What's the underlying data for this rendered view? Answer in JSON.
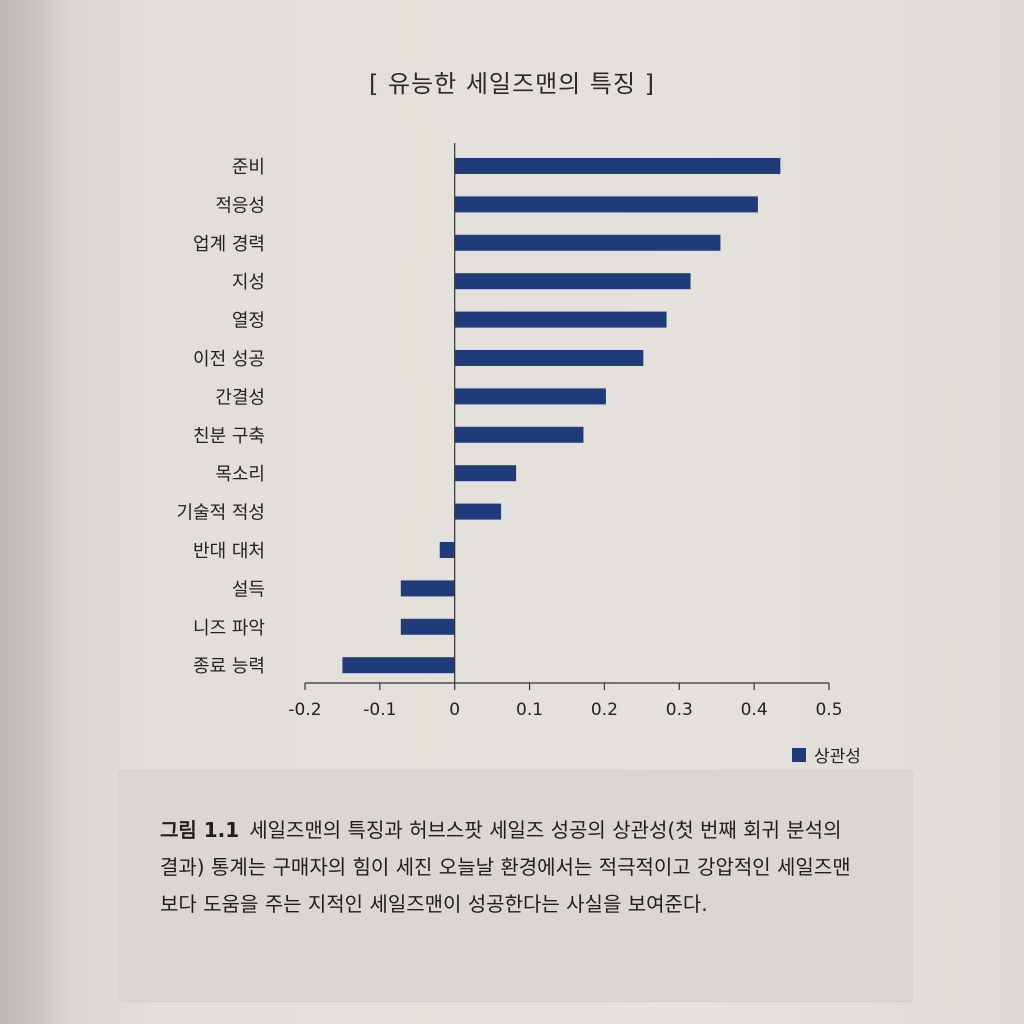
{
  "title": "[ 유능한 세일즈맨의 특징 ]",
  "legend": {
    "label": "상관성",
    "color": "#1f3b7a"
  },
  "caption": {
    "label": "그림 1.1",
    "text": "세일즈맨의 특징과 허브스팟 세일즈 성공의 상관성(첫 번째 회귀 분석의 결과) 통계는 구매자의 힘이 세진 오늘날 환경에서는 적극적이고 강압적인 세일즈맨보다 도움을 주는 지적인 세일즈맨이 성공한다는 사실을 보여준다."
  },
  "chart_data": {
    "type": "bar",
    "orientation": "horizontal",
    "title": "[ 유능한 세일즈맨의 특징 ]",
    "xlabel": "",
    "ylabel": "",
    "xlim": [
      -0.2,
      0.5
    ],
    "ticks": [
      "-0.2",
      "-0.1",
      "0",
      "0.1",
      "0.2",
      "0.3",
      "0.4",
      "0.5"
    ],
    "tick_values": [
      -0.2,
      -0.1,
      0,
      0.1,
      0.2,
      0.3,
      0.4,
      0.5
    ],
    "categories": [
      "준비",
      "적응성",
      "업계 경력",
      "지성",
      "열정",
      "이전 성공",
      "간결성",
      "친분 구축",
      "목소리",
      "기술적 적성",
      "반대 대처",
      "설득",
      "니즈 파악",
      "종료 능력"
    ],
    "series": [
      {
        "name": "상관성",
        "color": "#1f3b7a",
        "values": [
          0.435,
          0.405,
          0.355,
          0.315,
          0.283,
          0.252,
          0.202,
          0.172,
          0.082,
          0.062,
          -0.02,
          -0.072,
          -0.072,
          -0.15
        ]
      }
    ],
    "grid": false,
    "legend_position": "bottom-right"
  }
}
